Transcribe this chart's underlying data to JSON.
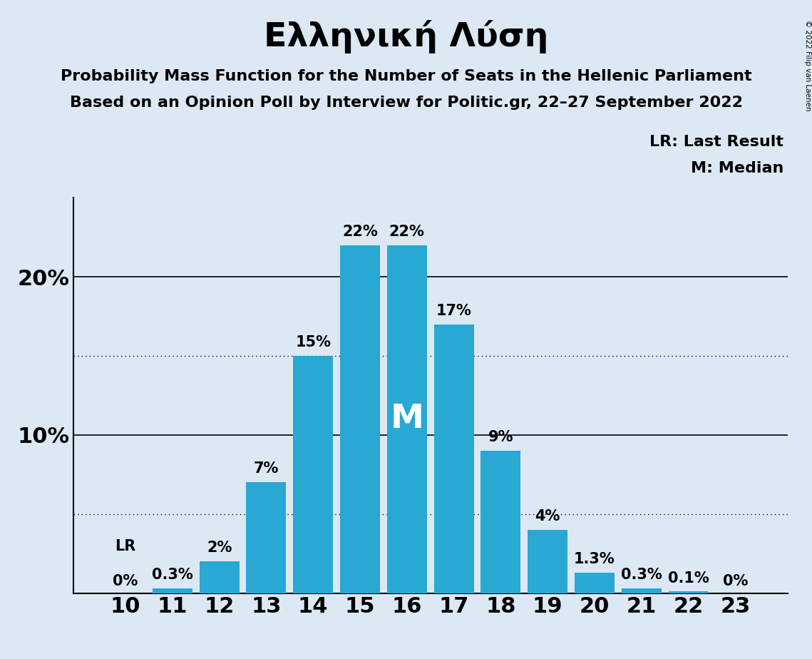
{
  "title": "Ελληνική Λύση",
  "subtitle1": "Probability Mass Function for the Number of Seats in the Hellenic Parliament",
  "subtitle2": "Based on an Opinion Poll by Interview for Politic.gr, 22–27 September 2022",
  "copyright": "© 2022 Filip van Laenen",
  "categories": [
    10,
    11,
    12,
    13,
    14,
    15,
    16,
    17,
    18,
    19,
    20,
    21,
    22,
    23
  ],
  "values": [
    0.0,
    0.3,
    2.0,
    7.0,
    15.0,
    22.0,
    22.0,
    17.0,
    9.0,
    4.0,
    1.3,
    0.3,
    0.1,
    0.0
  ],
  "labels": [
    "0%",
    "0.3%",
    "2%",
    "7%",
    "15%",
    "22%",
    "22%",
    "17%",
    "9%",
    "4%",
    "1.3%",
    "0.3%",
    "0.1%",
    "0%"
  ],
  "bar_color": "#29a8d4",
  "background_color": "#dce9f5",
  "median_bar": 16,
  "median_label": "M",
  "lr_bar": 10,
  "lr_label": "LR",
  "legend_lr": "LR: Last Result",
  "legend_m": "M: Median",
  "ylim": [
    0,
    25
  ],
  "solid_lines": [
    10.0,
    20.0
  ],
  "dotted_lines": [
    5.0,
    15.0
  ],
  "title_fontsize": 34,
  "subtitle_fontsize": 16,
  "bar_label_fontsize": 15,
  "axis_fontsize": 22,
  "legend_fontsize": 16,
  "median_label_fontsize": 34
}
